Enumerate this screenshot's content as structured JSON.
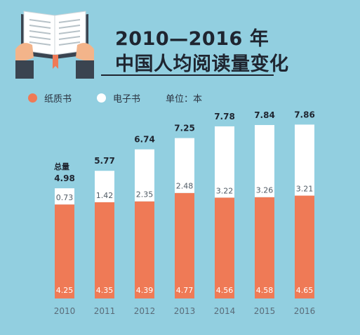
{
  "header": {
    "title_line1": "2010—2016 年",
    "title_line2": "中国人均阅读量变化"
  },
  "legend": {
    "paper_label": "纸质书",
    "ebook_label": "电子书",
    "unit_label": "单位：本"
  },
  "icons": {
    "header": "open-book-hands-icon"
  },
  "colors": {
    "background": "#92cfe0",
    "paper": "#ef7a56",
    "ebook": "#ffffff",
    "total_text": "#1f2530",
    "axis_text": "#5a6b78"
  },
  "chart_data": {
    "type": "bar",
    "stacked": true,
    "title": "2010—2016 年 中国人均阅读量变化",
    "categories": [
      "2010",
      "2011",
      "2012",
      "2013",
      "2014",
      "2015",
      "2016"
    ],
    "series": [
      {
        "name": "纸质书",
        "values": [
          4.25,
          4.35,
          4.39,
          4.77,
          4.56,
          4.58,
          4.65
        ]
      },
      {
        "name": "电子书",
        "values": [
          0.73,
          1.42,
          2.35,
          2.48,
          3.22,
          3.26,
          3.21
        ]
      }
    ],
    "totals": [
      4.98,
      5.77,
      6.74,
      7.25,
      7.78,
      7.84,
      7.86
    ],
    "total_label_prefix": "总量",
    "unit": "本",
    "legend_position": "top-left",
    "grid": false,
    "ylim": [
      0,
      7.86
    ]
  }
}
